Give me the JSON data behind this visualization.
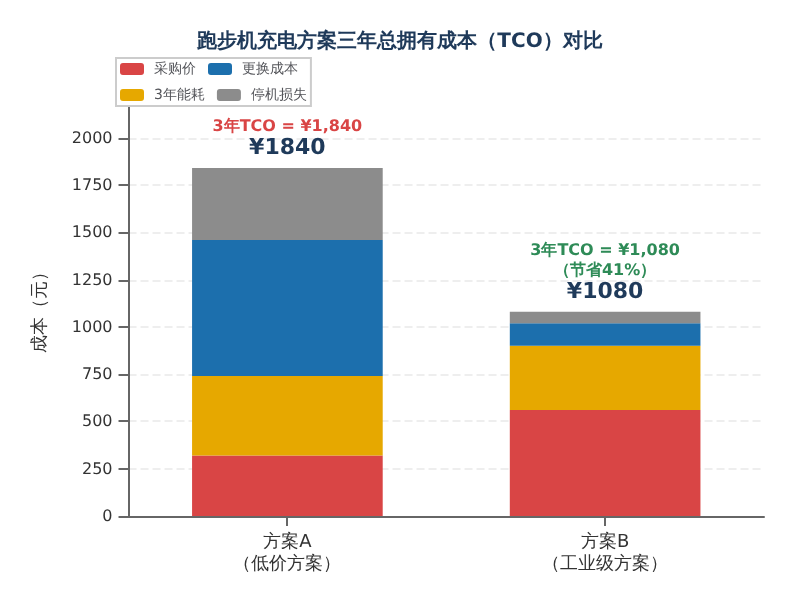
{
  "chart_data": {
    "type": "bar",
    "stacked": true,
    "title": "跑步机充电方案三年总拥有成本（TCO）对比",
    "ylabel": "成本（元）",
    "categories": [
      "方案A\n（低价方案）",
      "方案B\n（工业级方案）"
    ],
    "series": [
      {
        "name": "采购价",
        "color": "#d94545",
        "values": [
          320,
          560
        ]
      },
      {
        "name": "3年能耗",
        "color": "#e6a800",
        "values": [
          420,
          340
        ]
      },
      {
        "name": "更换成本",
        "color": "#1c6fad",
        "values": [
          720,
          120
        ]
      },
      {
        "name": "停机损失",
        "color": "#8c8c8c",
        "values": [
          380,
          60
        ]
      }
    ],
    "totals": [
      "¥1840",
      "¥1080"
    ],
    "annotations": [
      {
        "text": "3年TCO = ¥1,840",
        "x": "方案A\n（低价方案）",
        "y": 1840
      },
      {
        "text": "3年TCO = ¥1,080\n（节省41%）",
        "x": "方案B\n（工业级方案）",
        "y": 1080
      }
    ],
    "ylim": [
      0,
      2200
    ],
    "yticks": [
      0,
      250,
      500,
      750,
      1000,
      1250,
      1500,
      1750,
      2000
    ],
    "grid": "y",
    "legend": "top left"
  }
}
